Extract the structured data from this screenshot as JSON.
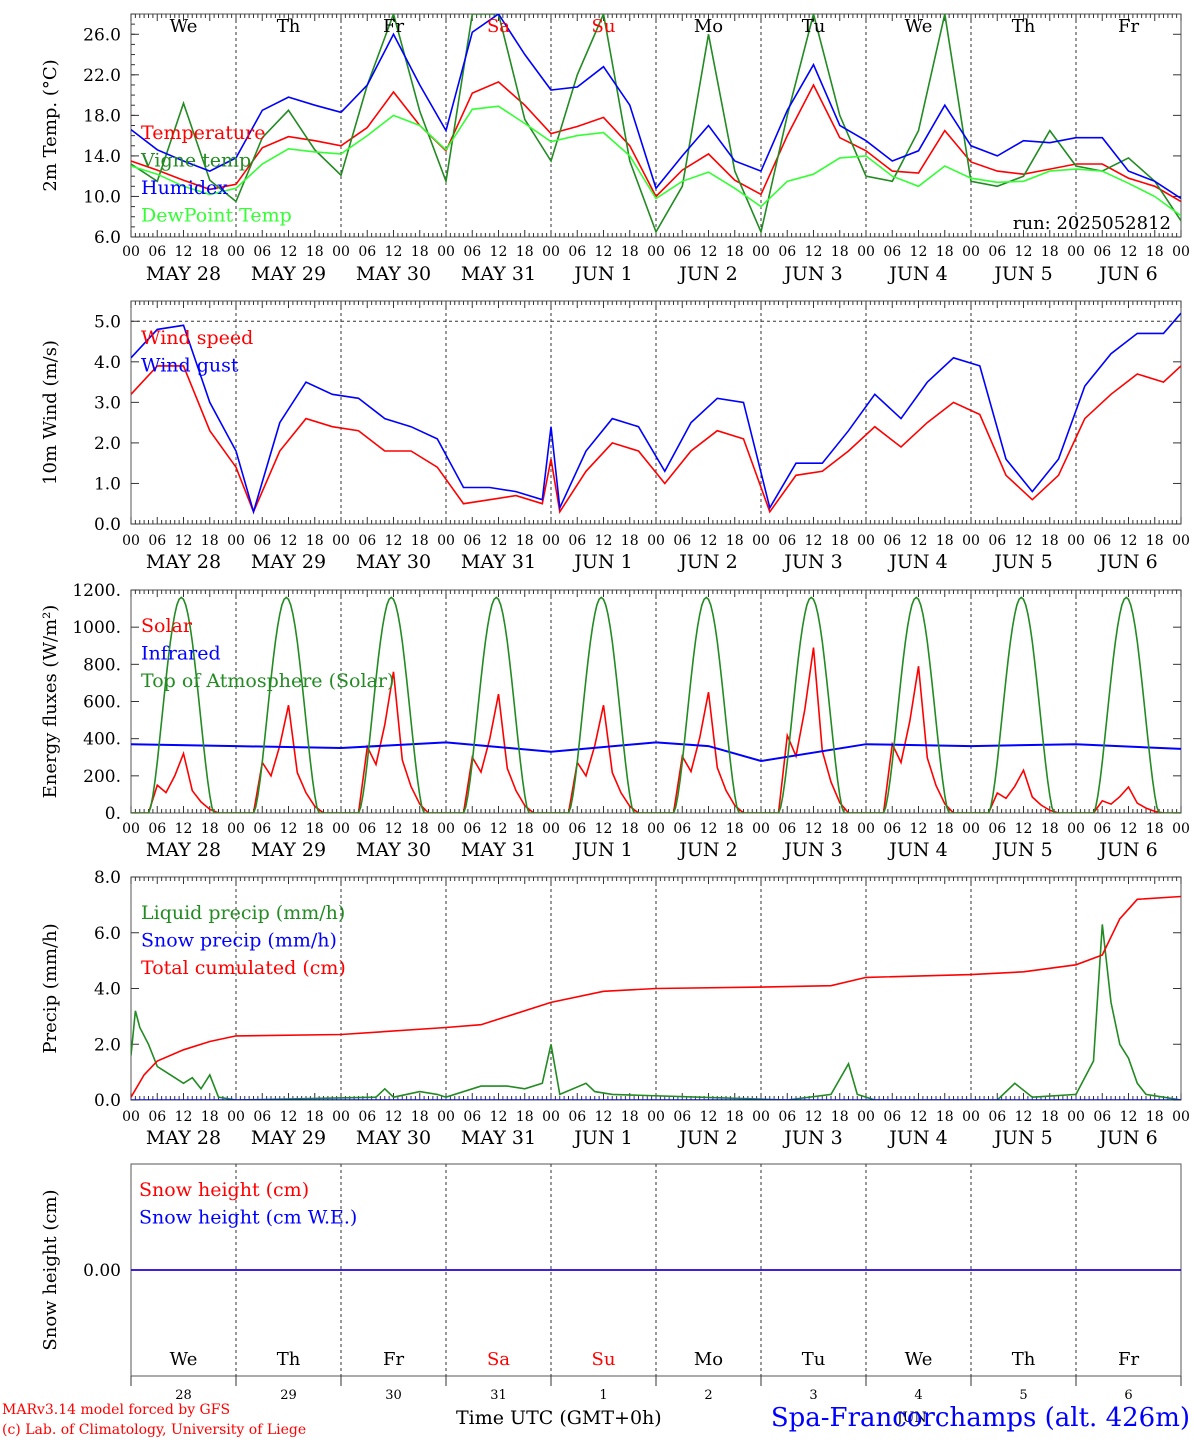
{
  "days": [
    {
      "weekday": "We",
      "date": "MAY 28",
      "weekend": false,
      "num": "28"
    },
    {
      "weekday": "Th",
      "date": "MAY 29",
      "weekend": false,
      "num": "29"
    },
    {
      "weekday": "Fr",
      "date": "MAY 30",
      "weekend": false,
      "num": "30"
    },
    {
      "weekday": "Sa",
      "date": "MAY 31",
      "weekend": true,
      "num": "31"
    },
    {
      "weekday": "Su",
      "date": "JUN  1",
      "weekend": true,
      "num": "1"
    },
    {
      "weekday": "Mo",
      "date": "JUN  2",
      "weekend": false,
      "num": "2"
    },
    {
      "weekday": "Tu",
      "date": "JUN  3",
      "weekend": false,
      "num": "3"
    },
    {
      "weekday": "We",
      "date": "JUN  4",
      "weekend": false,
      "num": "4"
    },
    {
      "weekday": "Th",
      "date": "JUN  5",
      "weekend": false,
      "num": "5"
    },
    {
      "weekday": "Fr",
      "date": "JUN  6",
      "weekend": false,
      "num": "6"
    }
  ],
  "hour_labels": [
    "00",
    "06",
    "12",
    "18"
  ],
  "final_hour_label": "00",
  "colors": {
    "red": "#ff0000",
    "darkgreen": "#228b22",
    "blue": "#0000ff",
    "lightgreen": "#33ff33",
    "gray": "#555555",
    "text": "#000000"
  },
  "run_label": "run: 2025052812",
  "footer": {
    "model": "MARv3.14 model forced by GFS",
    "credit": "(c) Lab. of Climatology, University of Liege",
    "time_axis": "Time UTC (GMT+0h)",
    "station": "Spa-Francorchamps (alt. 426m)",
    "month_label": "JUN"
  },
  "chart_data": [
    {
      "id": "temp",
      "type": "line",
      "ylabel": "2m Temp. (°C)",
      "ylim": [
        6,
        28
      ],
      "yticks": [
        6,
        10,
        14,
        18,
        22,
        26
      ],
      "ytick_labels": [
        "6.0",
        "10.0",
        "14.0",
        "18.0",
        "22.0",
        "26.0"
      ],
      "x_unit": "hours since May 28 00 UTC",
      "series": [
        {
          "name": "Temperature",
          "color": "red",
          "x": [
            0,
            6,
            12,
            18,
            24,
            30,
            36,
            42,
            48,
            54,
            60,
            66,
            72,
            78,
            84,
            90,
            96,
            102,
            108,
            114,
            120,
            126,
            132,
            138,
            144,
            150,
            156,
            162,
            168,
            174,
            180,
            186,
            192,
            198,
            204,
            210,
            216,
            222,
            228,
            234,
            240
          ],
          "values": [
            13.5,
            12.6,
            11.6,
            10.7,
            11.2,
            14.8,
            15.9,
            15.5,
            15.0,
            16.8,
            20.3,
            17.0,
            14.5,
            20.2,
            21.3,
            19.0,
            16.2,
            16.9,
            17.8,
            15.0,
            10.0,
            12.6,
            14.2,
            11.6,
            10.2,
            16.0,
            21.0,
            15.8,
            14.5,
            12.5,
            12.3,
            16.5,
            13.4,
            12.5,
            12.2,
            12.7,
            13.2,
            13.2,
            11.8,
            11.0,
            9.5
          ]
        },
        {
          "name": "Vigne temp",
          "color": "darkgreen",
          "x": [
            0,
            6,
            12,
            18,
            24,
            30,
            36,
            42,
            48,
            54,
            60,
            66,
            72,
            78,
            84,
            90,
            96,
            102,
            108,
            114,
            120,
            126,
            132,
            138,
            144,
            150,
            156,
            162,
            168,
            174,
            180,
            186,
            192,
            198,
            204,
            210,
            216,
            222,
            228,
            234,
            240
          ],
          "values": [
            13.2,
            11.5,
            19.2,
            11.6,
            9.5,
            15.8,
            18.5,
            14.6,
            12.1,
            21.0,
            28.0,
            18.4,
            11.5,
            28.0,
            28.0,
            17.6,
            13.5,
            22.0,
            28.0,
            13.5,
            6.5,
            11.0,
            26.0,
            12.5,
            6.5,
            18.0,
            28.0,
            18.0,
            12.0,
            11.5,
            16.5,
            28.0,
            11.5,
            11.0,
            12.0,
            16.5,
            13.0,
            12.5,
            13.8,
            11.5,
            7.6
          ]
        },
        {
          "name": "Humidex",
          "color": "blue",
          "x": [
            0,
            6,
            12,
            18,
            24,
            30,
            36,
            42,
            48,
            54,
            60,
            66,
            72,
            78,
            84,
            90,
            96,
            102,
            108,
            114,
            120,
            126,
            132,
            138,
            144,
            150,
            156,
            162,
            168,
            174,
            180,
            186,
            192,
            198,
            204,
            210,
            216,
            222,
            228,
            234,
            240
          ],
          "values": [
            16.6,
            14.6,
            13.5,
            12.5,
            13.8,
            18.5,
            19.8,
            19.0,
            18.3,
            21.0,
            26.0,
            21.0,
            16.5,
            26.2,
            28.0,
            24.0,
            20.5,
            20.8,
            22.8,
            19.0,
            10.8,
            14.0,
            17.0,
            13.5,
            12.5,
            18.5,
            23.0,
            17.0,
            15.5,
            13.5,
            14.5,
            19.0,
            15.0,
            14.0,
            15.5,
            15.3,
            15.8,
            15.8,
            12.5,
            11.5,
            9.8
          ]
        },
        {
          "name": "DewPoint Temp",
          "color": "lightgreen",
          "x": [
            0,
            6,
            12,
            18,
            24,
            30,
            36,
            42,
            48,
            54,
            60,
            66,
            72,
            78,
            84,
            90,
            96,
            102,
            108,
            114,
            120,
            126,
            132,
            138,
            144,
            150,
            156,
            162,
            168,
            174,
            180,
            186,
            192,
            198,
            204,
            210,
            216,
            222,
            228,
            234,
            240
          ],
          "values": [
            13.0,
            12.2,
            11.0,
            10.2,
            10.8,
            13.2,
            14.7,
            14.4,
            14.2,
            16.0,
            18.0,
            17.0,
            14.6,
            18.6,
            18.9,
            17.2,
            15.4,
            16.0,
            16.3,
            14.0,
            9.8,
            11.5,
            12.4,
            10.8,
            9.0,
            11.5,
            12.2,
            13.8,
            14.0,
            12.0,
            11.0,
            13.0,
            11.8,
            11.4,
            11.5,
            12.5,
            12.7,
            12.5,
            11.3,
            10.0,
            8.1
          ]
        }
      ]
    },
    {
      "id": "wind",
      "type": "line",
      "ylabel": "10m Wind (m/s)",
      "ylim": [
        0,
        5.5
      ],
      "yticks": [
        0,
        1,
        2,
        3,
        4,
        5
      ],
      "ytick_labels": [
        "0.0",
        "1.0",
        "2.0",
        "3.0",
        "4.0",
        "5.0"
      ],
      "reference_line": 5,
      "x_unit": "hours since May 28 00 UTC",
      "series": [
        {
          "name": "Wind speed",
          "color": "red",
          "x": [
            0,
            6,
            12,
            18,
            24,
            28,
            34,
            40,
            46,
            52,
            58,
            64,
            70,
            76,
            82,
            88,
            94,
            96,
            98,
            104,
            110,
            116,
            122,
            128,
            134,
            140,
            146,
            152,
            158,
            164,
            170,
            176,
            182,
            188,
            194,
            200,
            206,
            212,
            218,
            224,
            230,
            236,
            240
          ],
          "values": [
            3.2,
            3.9,
            3.9,
            2.3,
            1.4,
            0.3,
            1.8,
            2.6,
            2.4,
            2.3,
            1.8,
            1.8,
            1.4,
            0.5,
            0.6,
            0.7,
            0.5,
            1.6,
            0.3,
            1.3,
            2.0,
            1.8,
            1.0,
            1.8,
            2.3,
            2.1,
            0.3,
            1.2,
            1.3,
            1.8,
            2.4,
            1.9,
            2.5,
            3.0,
            2.7,
            1.2,
            0.6,
            1.2,
            2.6,
            3.2,
            3.7,
            3.5,
            3.9
          ]
        },
        {
          "name": "Wind gust",
          "color": "blue",
          "x": [
            0,
            6,
            12,
            18,
            24,
            28,
            34,
            40,
            46,
            52,
            58,
            64,
            70,
            76,
            82,
            88,
            94,
            96,
            98,
            104,
            110,
            116,
            122,
            128,
            134,
            140,
            146,
            152,
            158,
            164,
            170,
            176,
            182,
            188,
            194,
            200,
            206,
            212,
            218,
            224,
            230,
            236,
            240
          ],
          "values": [
            4.1,
            4.8,
            4.9,
            3.0,
            1.8,
            0.3,
            2.5,
            3.5,
            3.2,
            3.1,
            2.6,
            2.4,
            2.1,
            0.9,
            0.9,
            0.8,
            0.6,
            2.4,
            0.4,
            1.8,
            2.6,
            2.4,
            1.3,
            2.5,
            3.1,
            3.0,
            0.4,
            1.5,
            1.5,
            2.3,
            3.2,
            2.6,
            3.5,
            4.1,
            3.9,
            1.6,
            0.8,
            1.6,
            3.4,
            4.2,
            4.7,
            4.7,
            5.2
          ]
        }
      ]
    },
    {
      "id": "energy",
      "type": "line",
      "ylabel": "Energy fluxes (W/m²)",
      "ylim": [
        0,
        1200
      ],
      "yticks": [
        0,
        200,
        400,
        600,
        800,
        1000,
        1200
      ],
      "ytick_labels": [
        "0.",
        "200.",
        "400.",
        "600.",
        "800.",
        "1000.",
        "1200."
      ],
      "x_unit": "hours since May 28 00 UTC",
      "toa_peak": 1160,
      "toa_daylight_hours": [
        4,
        19
      ],
      "solar_daily_peaks": [
        320,
        580,
        760,
        640,
        580,
        650,
        890,
        790,
        230,
        140
      ],
      "series": [
        {
          "name": "Solar",
          "color": "red",
          "x": [
            0,
            4,
            6,
            8,
            10,
            12,
            14,
            16,
            18,
            20
          ],
          "values": [
            0,
            0,
            150,
            110,
            200,
            320,
            120,
            60,
            20,
            0
          ]
        },
        {
          "name": "Infrared",
          "color": "blue",
          "x": [
            0,
            24,
            48,
            72,
            96,
            120,
            132,
            144,
            168,
            192,
            216,
            240
          ],
          "values": [
            370,
            360,
            350,
            380,
            330,
            380,
            360,
            280,
            370,
            360,
            370,
            345
          ]
        },
        {
          "name": "Top of Atmosphere (Solar)",
          "color": "darkgreen",
          "x": [
            4,
            11.5,
            19
          ],
          "values": [
            0,
            1160,
            0
          ]
        }
      ]
    },
    {
      "id": "precip",
      "type": "line",
      "ylabel": "Precip (mm/h)",
      "ylim": [
        0,
        8
      ],
      "yticks": [
        0,
        2,
        4,
        6,
        8
      ],
      "ytick_labels": [
        "0.0",
        "2.0",
        "4.0",
        "6.0",
        "8.0"
      ],
      "x_unit": "hours since May 28 00 UTC",
      "series": [
        {
          "name": "Liquid precip (mm/h)",
          "color": "darkgreen",
          "x": [
            0,
            1,
            2,
            4,
            6,
            8,
            10,
            12,
            14,
            16,
            18,
            20,
            24,
            56,
            58,
            60,
            66,
            70,
            72,
            80,
            86,
            90,
            94,
            96,
            98,
            104,
            106,
            110,
            150,
            160,
            164,
            166,
            170,
            198,
            202,
            206,
            216,
            220,
            222,
            224,
            226,
            228,
            230,
            232,
            236,
            240
          ],
          "values": [
            1.6,
            3.2,
            2.6,
            2.0,
            1.2,
            1.0,
            0.8,
            0.6,
            0.8,
            0.4,
            0.9,
            0.1,
            0,
            0.1,
            0.4,
            0.1,
            0.3,
            0.2,
            0.1,
            0.5,
            0.5,
            0.4,
            0.6,
            2.0,
            0.2,
            0.6,
            0.3,
            0.2,
            0,
            0.2,
            1.3,
            0.2,
            0,
            0,
            0.6,
            0.1,
            0.2,
            1.4,
            6.3,
            3.5,
            2.0,
            1.5,
            0.6,
            0.2,
            0.1,
            0
          ]
        },
        {
          "name": "Snow precip (mm/h)",
          "color": "blue",
          "x": [
            0,
            240
          ],
          "values": [
            0,
            0
          ]
        },
        {
          "name": "Total cumulated (cm)",
          "color": "red",
          "x": [
            0,
            3,
            6,
            12,
            18,
            24,
            48,
            72,
            80,
            96,
            108,
            120,
            144,
            160,
            168,
            192,
            204,
            216,
            222,
            226,
            230,
            240
          ],
          "values": [
            0.1,
            0.9,
            1.4,
            1.8,
            2.1,
            2.3,
            2.35,
            2.6,
            2.7,
            3.5,
            3.9,
            4.0,
            4.05,
            4.1,
            4.4,
            4.5,
            4.6,
            4.85,
            5.2,
            6.5,
            7.2,
            7.3
          ]
        }
      ]
    },
    {
      "id": "snow",
      "type": "line",
      "ylabel": "Snow height (cm)",
      "ylim": [
        -1,
        1
      ],
      "yticks": [
        0
      ],
      "ytick_labels": [
        "0.00"
      ],
      "x_unit": "hours since May 28 00 UTC",
      "series": [
        {
          "name": "Snow height (cm)",
          "color": "red",
          "x": [
            0,
            240
          ],
          "values": [
            0,
            0
          ]
        },
        {
          "name": "Snow height (cm W.E.)",
          "color": "blue",
          "x": [
            0,
            240
          ],
          "values": [
            0,
            0
          ]
        }
      ]
    }
  ]
}
